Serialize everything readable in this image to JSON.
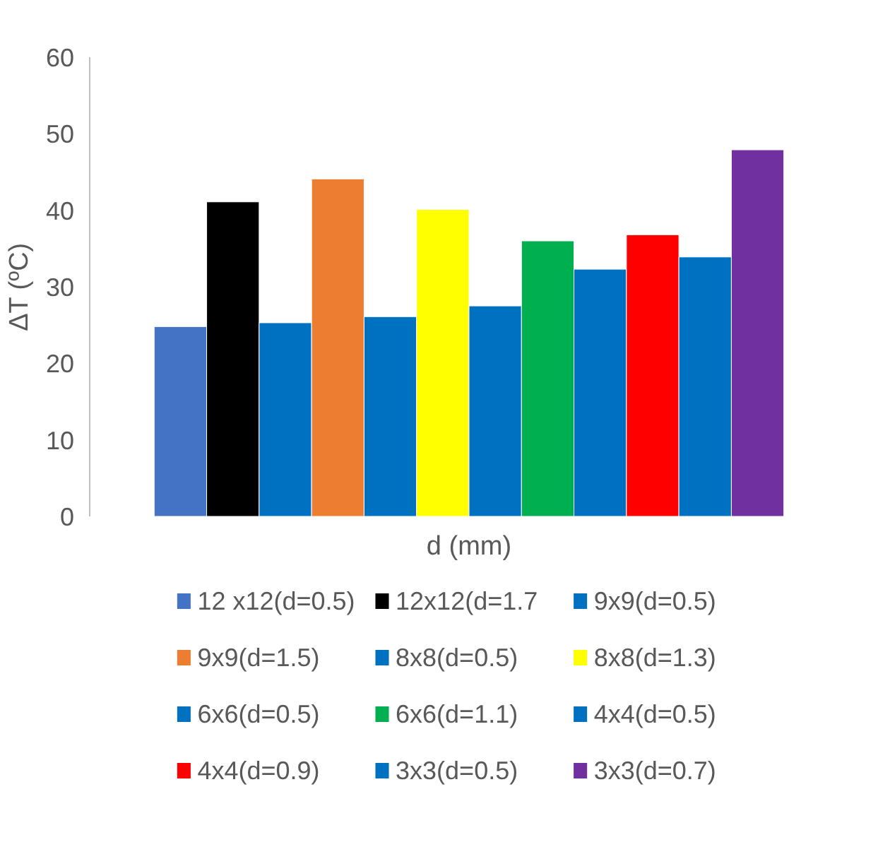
{
  "chart_data": {
    "type": "bar",
    "categories": [
      null
    ],
    "xlabel": "d (mm)",
    "ylabel": "ΔT (ºC)",
    "ylim": [
      0,
      60
    ],
    "yticks": [
      0,
      10,
      20,
      30,
      40,
      50,
      60
    ],
    "grid": false,
    "legend": "bottom",
    "series": [
      {
        "name": "12 x12(d=0.5)",
        "color": "#4472c4",
        "values": [
          24.8
        ]
      },
      {
        "name": "12x12(d=1.7",
        "color": "#000000",
        "values": [
          41.1
        ]
      },
      {
        "name": "9x9(d=0.5)",
        "color": "#0070c0",
        "values": [
          25.3
        ]
      },
      {
        "name": "9x9(d=1.5)",
        "color": "#ed7d31",
        "values": [
          44.1
        ]
      },
      {
        "name": "8x8(d=0.5)",
        "color": "#0070c0",
        "values": [
          26.1
        ]
      },
      {
        "name": "8x8(d=1.3)",
        "color": "#ffff00",
        "values": [
          40.1
        ]
      },
      {
        "name": "6x6(d=0.5)",
        "color": "#0070c0",
        "values": [
          27.5
        ]
      },
      {
        "name": "6x6(d=1.1)",
        "color": "#00b050",
        "values": [
          36.0
        ]
      },
      {
        "name": "4x4(d=0.5)",
        "color": "#0070c0",
        "values": [
          32.3
        ]
      },
      {
        "name": "4x4(d=0.9)",
        "color": "#ff0000",
        "values": [
          36.8
        ]
      },
      {
        "name": "3x3(d=0.5)",
        "color": "#0070c0",
        "values": [
          33.9
        ]
      },
      {
        "name": "3x3(d=0.7)",
        "color": "#7030a0",
        "values": [
          47.9
        ]
      }
    ]
  }
}
